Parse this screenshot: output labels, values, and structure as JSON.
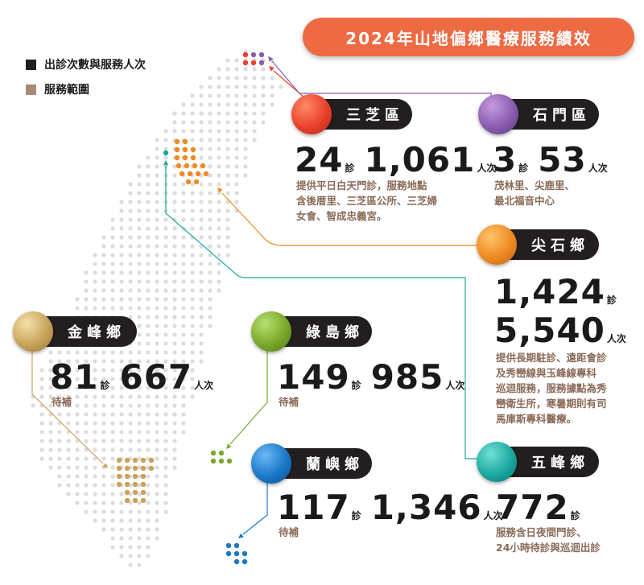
{
  "title": "2024年山地偏鄉醫療服務績效",
  "legend": [
    {
      "label": "出診次數與服務人次",
      "color": "#231f20"
    },
    {
      "label": "服務範圍",
      "color": "#a68a78"
    }
  ],
  "units": {
    "visits": "診",
    "people": "人次"
  },
  "regions": {
    "sanzhi": {
      "name": "三芝區",
      "visits": "24",
      "people": "1,061",
      "desc": [
        "提供平日白天門診，服務地點",
        "含後厝里、三芝區公所、三芝婦",
        "女會、智成忠義宮。"
      ],
      "color": "#e8412c"
    },
    "shimen": {
      "name": "石門區",
      "visits": "3",
      "people": "53",
      "desc": [
        "茂林里、尖鹿里、",
        "最北福音中心"
      ],
      "color": "#8a5cb0"
    },
    "jianshi": {
      "name": "尖石鄉",
      "visits": "1,424",
      "people": "5,540",
      "desc": [
        "提供長期駐診、遠距會診",
        "及秀巒線與玉峰線專科",
        "巡迴服務，服務據點為秀",
        "巒衛生所，寒暑期則有司",
        "馬庫斯專科醫療。"
      ],
      "color": "#ee8a22"
    },
    "jinfeng": {
      "name": "金峰鄉",
      "visits": "81",
      "people": "667",
      "desc": [
        "待補"
      ],
      "color": "#c9a35a"
    },
    "ludao": {
      "name": "綠島鄉",
      "visits": "149",
      "people": "985",
      "desc": [
        "待補"
      ],
      "color": "#7aa82a"
    },
    "lanyu": {
      "name": "蘭嶼鄉",
      "visits": "117",
      "people": "1,346",
      "desc": [
        "待補"
      ],
      "color": "#1a78c8"
    },
    "wufeng": {
      "name": "五峰鄉",
      "visits": "772",
      "desc": [
        "服務含日夜間門診、",
        "24小時待診與巡迴出診"
      ],
      "color": "#1aa8a0"
    }
  }
}
